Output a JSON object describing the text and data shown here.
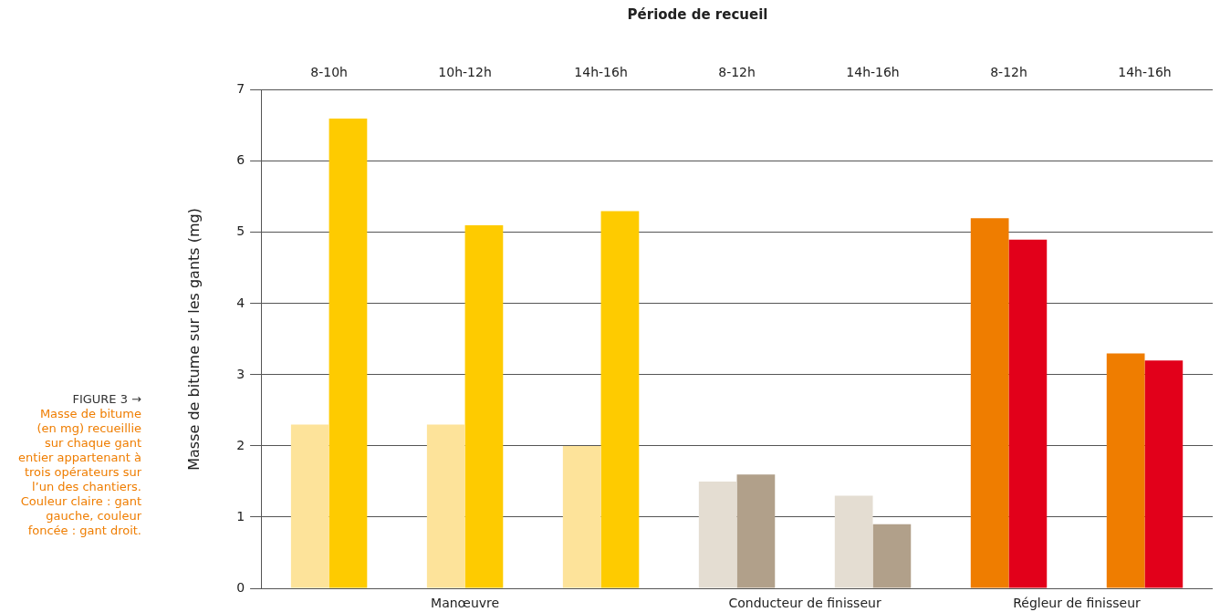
{
  "chart_data": {
    "type": "bar",
    "title": "Période de recueil",
    "ylabel": "Masse de bitume sur les gants (mg)",
    "categories": [
      "8-10h",
      "10h-12h",
      "14h-16h",
      "8-12h",
      "14h-16h",
      "8-12h",
      "14h-16h"
    ],
    "series": [
      {
        "values": [
          2.3,
          2.3,
          2.0,
          1.5,
          1.3,
          5.2,
          3.3
        ],
        "colors": [
          "#fde39a",
          "#fde39a",
          "#fde39a",
          "#e4ddd2",
          "#e4ddd2",
          "#ef7d00",
          "#ef7d00"
        ]
      },
      {
        "values": [
          6.6,
          5.1,
          5.3,
          1.6,
          0.9,
          4.9,
          3.2
        ],
        "colors": [
          "#fecb00",
          "#fecb00",
          "#fecb00",
          "#b1a08a",
          "#b1a08a",
          "#e2001a",
          "#e2001a"
        ]
      }
    ],
    "ylim": [
      0,
      7
    ],
    "yticks": [
      0,
      1,
      2,
      3,
      4,
      5,
      6,
      7
    ],
    "grid": "y",
    "legend": false,
    "annotations": [
      "Manœuvre",
      "Conducteur de finisseur",
      "Régleur de finisseur",
      "FIGURE 3 →",
      "Masse de bitume (en mg) recueillie sur chaque gant entier appartenant à trois opérateurs sur l’un des chantiers. Couleur claire : gant gauche, couleur foncée : gant droit."
    ]
  }
}
